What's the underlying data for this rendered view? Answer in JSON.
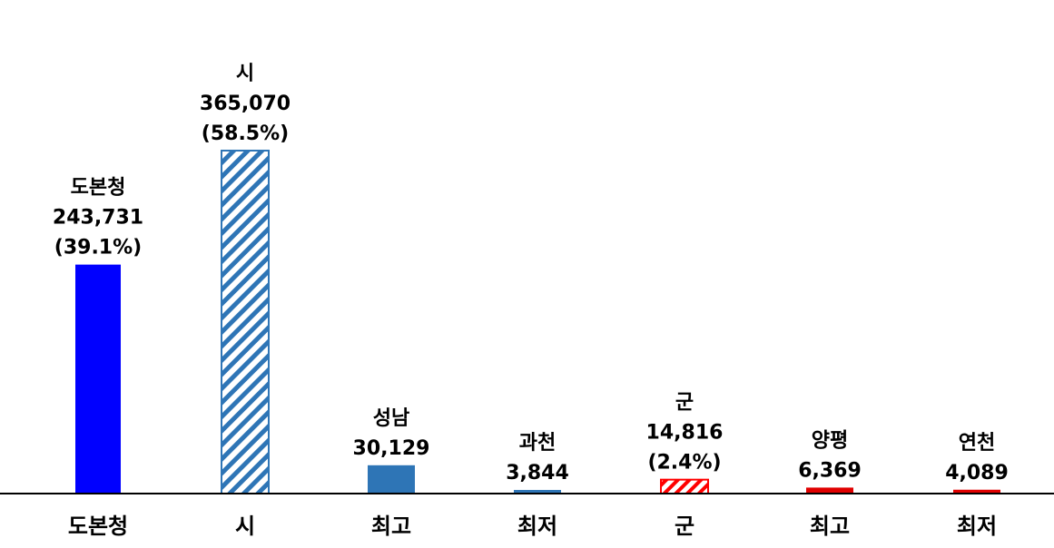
{
  "chart_data": {
    "type": "bar",
    "title": "",
    "xlabel": "",
    "ylabel": "",
    "ylim": [
      0,
      400000
    ],
    "grid": false,
    "legend": "none",
    "categories": [
      "도본청",
      "시",
      "최고",
      "최저",
      "군",
      "최고",
      "최저"
    ],
    "values": [
      243731,
      365070,
      30129,
      3844,
      14816,
      6369,
      4089
    ],
    "bar_labels": [
      [
        "도본청",
        "243,731",
        "(39.1%)"
      ],
      [
        "시",
        "365,070",
        "(58.5%)"
      ],
      [
        "성남",
        "30,129"
      ],
      [
        "과천",
        "3,844"
      ],
      [
        "군",
        "14,816",
        "(2.4%)"
      ],
      [
        "양평",
        "6,369"
      ],
      [
        "연천",
        "4,089"
      ]
    ],
    "bar_styles": [
      "solid",
      "hatched",
      "solid",
      "solid",
      "hatched",
      "solid",
      "solid"
    ],
    "bar_colors": [
      "#0000ff",
      "#2e75b6",
      "#2e75b6",
      "#2e75b6",
      "#ff0000",
      "#e00000",
      "#e00000"
    ]
  }
}
